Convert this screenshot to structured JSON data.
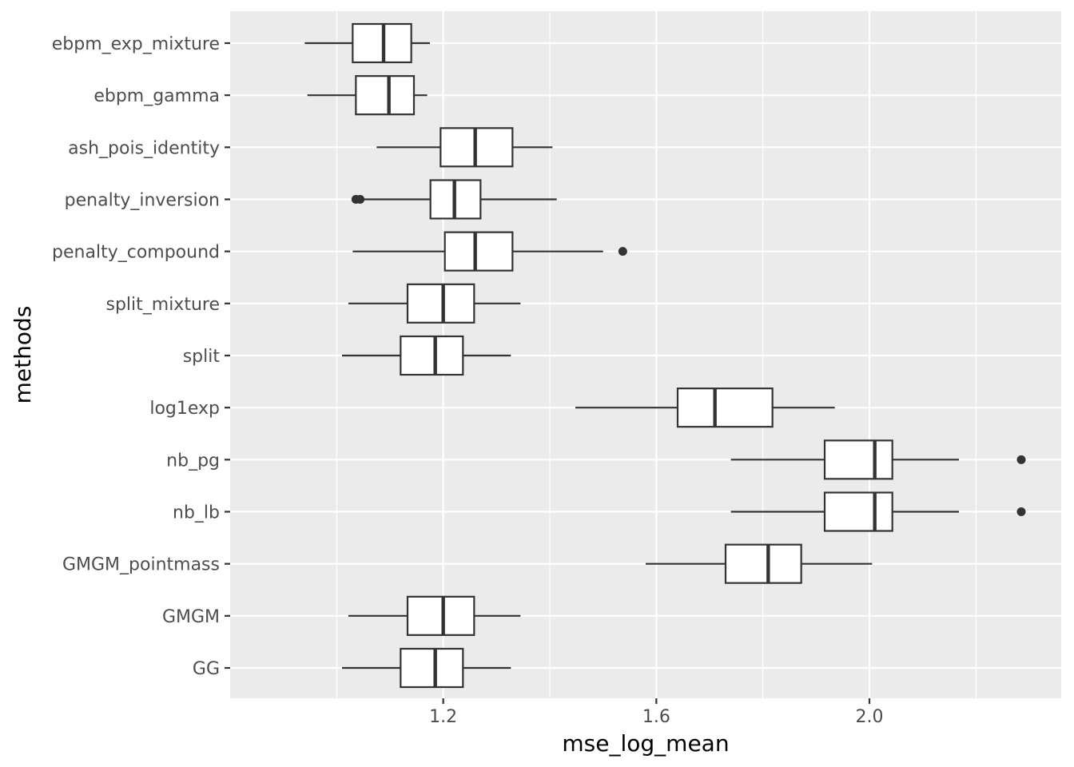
{
  "chart_data": {
    "type": "boxplot",
    "orientation": "horizontal",
    "xlabel": "mse_log_mean",
    "ylabel": "methods",
    "xlim": [
      0.8,
      2.36
    ],
    "x_ticks": [
      1.2,
      1.6,
      2.0
    ],
    "x_tick_labels": [
      "1.2",
      "1.6",
      "2.0"
    ],
    "x_minor_ticks": [
      1.0,
      1.4,
      1.8,
      2.2
    ],
    "grid": true,
    "legend": "none",
    "colors": {
      "panel_background": "#ebebeb",
      "grid": "#ffffff",
      "box_fill": "#ffffff",
      "box_stroke": "#333333",
      "outlier": "#333333"
    },
    "categories": [
      "ebpm_exp_mixture",
      "ebpm_gamma",
      "ash_pois_identity",
      "penalty_inversion",
      "penalty_compound",
      "split_mixture",
      "split",
      "log1exp",
      "nb_pg",
      "nb_lb",
      "GMGM_pointmass",
      "GMGM",
      "GG"
    ],
    "boxes": [
      {
        "category": "ebpm_exp_mixture",
        "whisker_low": 0.94,
        "q1": 1.03,
        "median": 1.088,
        "q3": 1.14,
        "whisker_high": 1.175,
        "outliers": []
      },
      {
        "category": "ebpm_gamma",
        "whisker_low": 0.945,
        "q1": 1.036,
        "median": 1.098,
        "q3": 1.145,
        "whisker_high": 1.17,
        "outliers": []
      },
      {
        "category": "ash_pois_identity",
        "whisker_low": 1.075,
        "q1": 1.195,
        "median": 1.26,
        "q3": 1.33,
        "whisker_high": 1.405,
        "outliers": []
      },
      {
        "category": "penalty_inversion",
        "whisker_low": 1.045,
        "q1": 1.176,
        "median": 1.221,
        "q3": 1.27,
        "whisker_high": 1.413,
        "outliers": [
          1.036,
          1.044
        ]
      },
      {
        "category": "penalty_compound",
        "whisker_low": 1.03,
        "q1": 1.203,
        "median": 1.26,
        "q3": 1.33,
        "whisker_high": 1.5,
        "outliers": [
          1.537
        ]
      },
      {
        "category": "split_mixture",
        "whisker_low": 1.022,
        "q1": 1.133,
        "median": 1.2,
        "q3": 1.258,
        "whisker_high": 1.345,
        "outliers": []
      },
      {
        "category": "split",
        "whisker_low": 1.01,
        "q1": 1.12,
        "median": 1.185,
        "q3": 1.237,
        "whisker_high": 1.327,
        "outliers": []
      },
      {
        "category": "log1exp",
        "whisker_low": 1.448,
        "q1": 1.64,
        "median": 1.71,
        "q3": 1.818,
        "whisker_high": 1.935,
        "outliers": []
      },
      {
        "category": "nb_pg",
        "whisker_low": 1.74,
        "q1": 1.916,
        "median": 2.01,
        "q3": 2.043,
        "whisker_high": 2.168,
        "outliers": [
          2.285
        ]
      },
      {
        "category": "nb_lb",
        "whisker_low": 1.74,
        "q1": 1.916,
        "median": 2.01,
        "q3": 2.043,
        "whisker_high": 2.168,
        "outliers": [
          2.285
        ]
      },
      {
        "category": "GMGM_pointmass",
        "whisker_low": 1.58,
        "q1": 1.73,
        "median": 1.81,
        "q3": 1.872,
        "whisker_high": 2.005,
        "outliers": []
      },
      {
        "category": "GMGM",
        "whisker_low": 1.022,
        "q1": 1.133,
        "median": 1.2,
        "q3": 1.258,
        "whisker_high": 1.345,
        "outliers": []
      },
      {
        "category": "GG",
        "whisker_low": 1.01,
        "q1": 1.12,
        "median": 1.185,
        "q3": 1.237,
        "whisker_high": 1.327,
        "outliers": []
      }
    ]
  }
}
